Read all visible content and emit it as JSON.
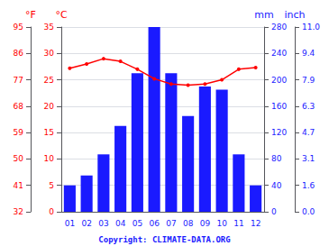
{
  "chart_data": {
    "type": "bar",
    "categories": [
      "01",
      "02",
      "03",
      "04",
      "05",
      "06",
      "07",
      "08",
      "09",
      "10",
      "11",
      "12"
    ],
    "series": [
      {
        "type": "bar",
        "color": "#1a1aff",
        "axis": "y2",
        "values": [
          40,
          55,
          87,
          130,
          210,
          280,
          210,
          145,
          190,
          185,
          87,
          40
        ]
      },
      {
        "type": "line",
        "color": "#ff0000",
        "marker": "circle",
        "values": [
          27.2,
          28.0,
          29.0,
          28.5,
          27.0,
          25.2,
          24.2,
          24.0,
          24.2,
          25.0,
          27.0,
          27.3
        ]
      }
    ],
    "ylabel": "°C",
    "ylim": [
      0,
      35
    ],
    "yticks": [
      0,
      5,
      10,
      15,
      20,
      25,
      30,
      35
    ],
    "y2label": "mm",
    "y2lim": [
      0,
      280
    ],
    "y2ticks": [
      0,
      40,
      80,
      120,
      160,
      200,
      240,
      280
    ],
    "y3label": "°F",
    "y3lim": [
      0,
      35
    ],
    "y3ticks": [
      {
        "value": 0,
        "label": "32"
      },
      {
        "value": 5,
        "label": "41"
      },
      {
        "value": 10,
        "label": "50"
      },
      {
        "value": 15,
        "label": "59"
      },
      {
        "value": 20,
        "label": "68"
      },
      {
        "value": 25,
        "label": "77"
      },
      {
        "value": 30,
        "label": "86"
      },
      {
        "value": 35,
        "label": "95"
      }
    ],
    "y4label": "inch",
    "y4lim": [
      0,
      280
    ],
    "y4ticks": [
      {
        "value": 0,
        "label": "0.0"
      },
      {
        "value": 40,
        "label": "1.6"
      },
      {
        "value": 80,
        "label": "3.1"
      },
      {
        "value": 120,
        "label": "4.7"
      },
      {
        "value": 160,
        "label": "6.3"
      },
      {
        "value": 200,
        "label": "7.9"
      },
      {
        "value": 240,
        "label": "9.4"
      },
      {
        "value": 280,
        "label": "11.0"
      }
    ],
    "grid": true,
    "annotations": [
      "Copyright: CLIMATE-DATA.ORG"
    ]
  }
}
